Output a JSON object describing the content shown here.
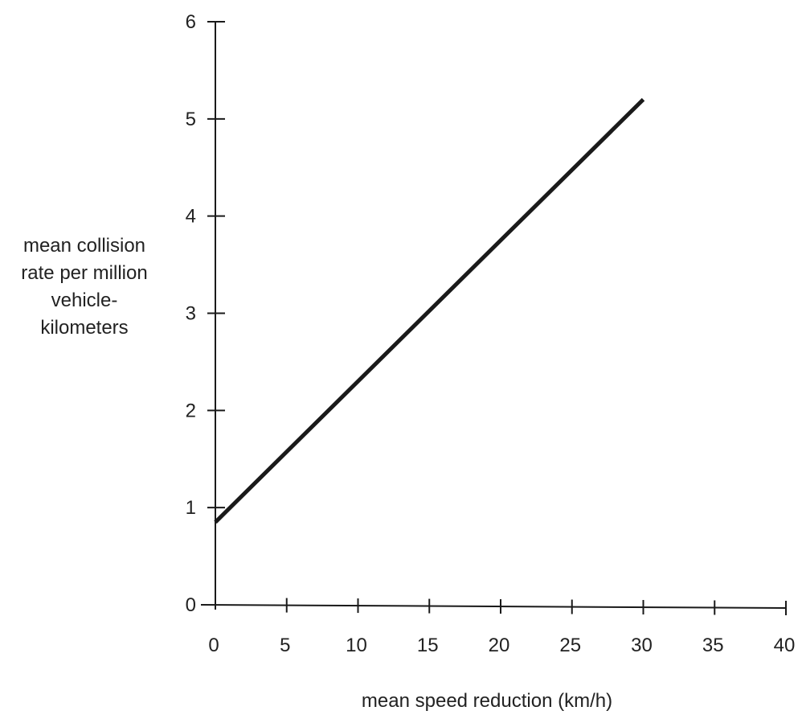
{
  "chart_data": {
    "type": "line",
    "title": "",
    "xlabel": "mean speed reduction (km/h)",
    "ylabel_lines": [
      "mean collision",
      "rate per million",
      "vehicle-",
      "kilometers"
    ],
    "xlim": [
      0,
      40
    ],
    "ylim": [
      0,
      6
    ],
    "x_ticks": [
      0,
      5,
      10,
      15,
      20,
      25,
      30,
      35,
      40
    ],
    "x_tick_labels": [
      "0",
      "5",
      "10",
      "15",
      "20",
      "25",
      "30",
      "35",
      "40"
    ],
    "y_ticks": [
      0,
      1,
      2,
      3,
      4,
      5,
      6
    ],
    "y_tick_labels": [
      "0",
      "1",
      "2",
      "3",
      "4",
      "5",
      "6"
    ],
    "grid": false,
    "series": [
      {
        "x": [
          0,
          30
        ],
        "y": [
          0.85,
          5.2
        ],
        "color": "#1a1a1a"
      }
    ]
  }
}
